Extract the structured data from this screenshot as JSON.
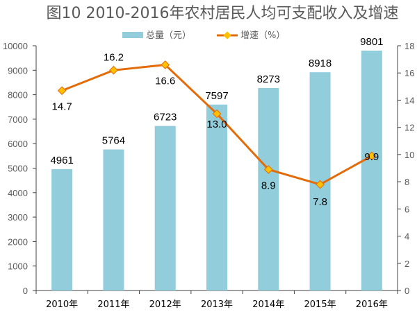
{
  "chart_data": {
    "type": "bar+line",
    "title": "图10  2010-2016年农村居民人均可支配收入及增速",
    "categories": [
      "2010年",
      "2011年",
      "2012年",
      "2013年",
      "2014年",
      "2015年",
      "2016年"
    ],
    "series": [
      {
        "name": "总量（元）",
        "type": "bar",
        "axis": "left",
        "values": [
          4961,
          5764,
          6723,
          7597,
          8273,
          8918,
          9801
        ],
        "labels": [
          "4961",
          "5764",
          "6723",
          "7597",
          "8273",
          "8918",
          "9801"
        ],
        "color": "#92CDDC"
      },
      {
        "name": "增速（%）",
        "type": "line",
        "axis": "right",
        "values": [
          14.7,
          16.2,
          16.6,
          13.0,
          8.9,
          7.8,
          9.9
        ],
        "labels": [
          "14.7",
          "16.2",
          "16.6",
          "13.0",
          "8.9",
          "7.8",
          "9.9"
        ],
        "color": "#E36C09",
        "marker_color": "#FFC000"
      }
    ],
    "y_left": {
      "min": 0,
      "max": 10000,
      "ticks": [
        "0",
        "1000",
        "2000",
        "3000",
        "4000",
        "5000",
        "6000",
        "7000",
        "8000",
        "9000",
        "10000"
      ]
    },
    "y_right": {
      "min": 0,
      "max": 18,
      "ticks": [
        "0",
        "2",
        "4",
        "6",
        "8",
        "10",
        "12",
        "14",
        "16",
        "18"
      ]
    },
    "grid": false,
    "legend": "top-center"
  }
}
